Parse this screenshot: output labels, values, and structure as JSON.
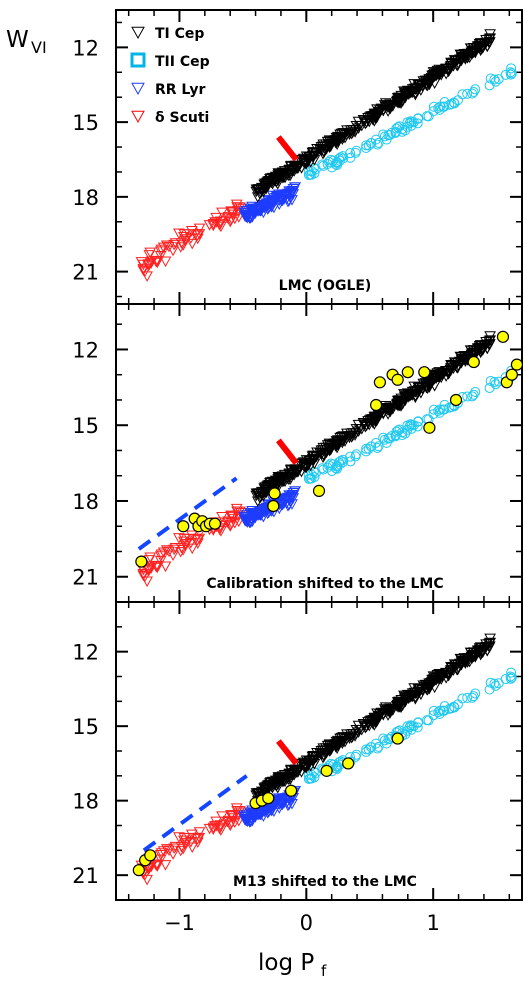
{
  "chart_data": {
    "type": "scatter",
    "ylabel_main": "W",
    "ylabel_sub": "VI",
    "xlabel_main": "log P",
    "xlabel_sub": "f",
    "xlim": [
      -1.5,
      1.7
    ],
    "x_ticks": [
      -1,
      0,
      1
    ],
    "x_tick_labels": [
      "−1",
      "0",
      "1"
    ],
    "y_ticks": [
      12,
      15,
      18,
      21
    ],
    "y_tick_labels": [
      "12",
      "15",
      "18",
      "21"
    ],
    "legend": {
      "placement": "top-left",
      "entries": [
        {
          "label": "TI Cep",
          "symbol": "triangle-down",
          "color": "#000000"
        },
        {
          "label": "TII Cep",
          "symbol": "square",
          "color": "#00b4e6"
        },
        {
          "label": "RR Lyr",
          "symbol": "triangle-down",
          "color": "#1e3cff"
        },
        {
          "label": "δ Scuti",
          "symbol": "triangle-down",
          "color": "#ff0000"
        }
      ]
    },
    "colors": {
      "ti_cep": "#000000",
      "tii_cep": "#1ec8f0",
      "rr_lyr": "#1e3cff",
      "delta_scuti": "#ff2020",
      "calibrators": "#ffff00",
      "red_bar": "#ff0000",
      "fit_line": "#1446ff"
    },
    "panels": [
      {
        "label": "LMC (OGLE)",
        "ylim": [
          10.5,
          22.3
        ],
        "ti_cep_fit": {
          "x": [
            -0.4,
            1.45
          ],
          "slope": -3.3,
          "intercept": 16.5
        },
        "tii_cep_fit": {
          "x": [
            0.0,
            1.65
          ],
          "slope": -2.6,
          "intercept": 17.2
        },
        "rr_lyr_fit": {
          "x": [
            -0.5,
            -0.08
          ],
          "slope": -2.5,
          "intercept": 17.55
        },
        "delta_scuti_fit": {
          "x": [
            -1.3,
            -0.5
          ],
          "slope": -3.0,
          "intercept": 16.9
        },
        "red_bar": {
          "x": [
            -0.22,
            -0.08
          ],
          "y": [
            15.6,
            16.5
          ]
        },
        "fit_line": null,
        "calibrators": []
      },
      {
        "label": "Calibration shifted to the LMC",
        "ylim": [
          10.2,
          22.0
        ],
        "ti_cep_fit": {
          "x": [
            -0.4,
            1.45
          ],
          "slope": -3.3,
          "intercept": 16.5
        },
        "tii_cep_fit": {
          "x": [
            0.0,
            1.65
          ],
          "slope": -2.6,
          "intercept": 17.2
        },
        "rr_lyr_fit": {
          "x": [
            -0.5,
            -0.08
          ],
          "slope": -2.5,
          "intercept": 17.55
        },
        "delta_scuti_fit": {
          "x": [
            -1.3,
            -0.5
          ],
          "slope": -3.0,
          "intercept": 16.9
        },
        "red_bar": {
          "x": [
            -0.22,
            -0.08
          ],
          "y": [
            15.6,
            16.5
          ]
        },
        "fit_line": {
          "x": [
            -1.32,
            -0.55
          ],
          "y": [
            19.9,
            17.1
          ]
        },
        "calibrators": [
          {
            "x": -1.3,
            "y": 20.4
          },
          {
            "x": -0.97,
            "y": 19.0
          },
          {
            "x": -0.88,
            "y": 18.7
          },
          {
            "x": -0.85,
            "y": 19.0
          },
          {
            "x": -0.82,
            "y": 18.8
          },
          {
            "x": -0.79,
            "y": 19.0
          },
          {
            "x": -0.76,
            "y": 18.9
          },
          {
            "x": -0.72,
            "y": 18.9
          },
          {
            "x": -0.25,
            "y": 17.7
          },
          {
            "x": -0.26,
            "y": 18.2
          },
          {
            "x": 0.1,
            "y": 17.6
          },
          {
            "x": 0.55,
            "y": 14.2
          },
          {
            "x": 0.58,
            "y": 13.3
          },
          {
            "x": 0.68,
            "y": 13.0
          },
          {
            "x": 0.72,
            "y": 13.2
          },
          {
            "x": 0.8,
            "y": 12.9
          },
          {
            "x": 0.93,
            "y": 12.9
          },
          {
            "x": 0.97,
            "y": 15.1
          },
          {
            "x": 1.18,
            "y": 14.0
          },
          {
            "x": 1.32,
            "y": 12.5
          },
          {
            "x": 1.55,
            "y": 11.5
          },
          {
            "x": 1.58,
            "y": 13.3
          },
          {
            "x": 1.62,
            "y": 13.0
          },
          {
            "x": 1.66,
            "y": 12.6
          }
        ]
      },
      {
        "label": "M13 shifted to the LMC",
        "ylim": [
          10.0,
          22.0
        ],
        "ti_cep_fit": {
          "x": [
            -0.4,
            1.45
          ],
          "slope": -3.3,
          "intercept": 16.5
        },
        "tii_cep_fit": {
          "x": [
            0.0,
            1.65
          ],
          "slope": -2.6,
          "intercept": 17.2
        },
        "rr_lyr_fit": {
          "x": [
            -0.5,
            -0.08
          ],
          "slope": -2.5,
          "intercept": 17.55
        },
        "delta_scuti_fit": {
          "x": [
            -1.3,
            -0.5
          ],
          "slope": -3.0,
          "intercept": 16.9
        },
        "red_bar": {
          "x": [
            -0.22,
            -0.08
          ],
          "y": [
            15.6,
            16.5
          ]
        },
        "fit_line": {
          "x": [
            -1.28,
            -0.47
          ],
          "y": [
            20.0,
            17.0
          ]
        },
        "calibrators": [
          {
            "x": -1.32,
            "y": 20.8
          },
          {
            "x": -1.27,
            "y": 20.4
          },
          {
            "x": -1.23,
            "y": 20.2
          },
          {
            "x": -0.4,
            "y": 18.1
          },
          {
            "x": -0.35,
            "y": 18.0
          },
          {
            "x": -0.3,
            "y": 17.9
          },
          {
            "x": -0.12,
            "y": 17.6
          },
          {
            "x": 0.16,
            "y": 16.8
          },
          {
            "x": 0.33,
            "y": 16.5
          },
          {
            "x": 0.72,
            "y": 15.5
          }
        ]
      }
    ]
  }
}
